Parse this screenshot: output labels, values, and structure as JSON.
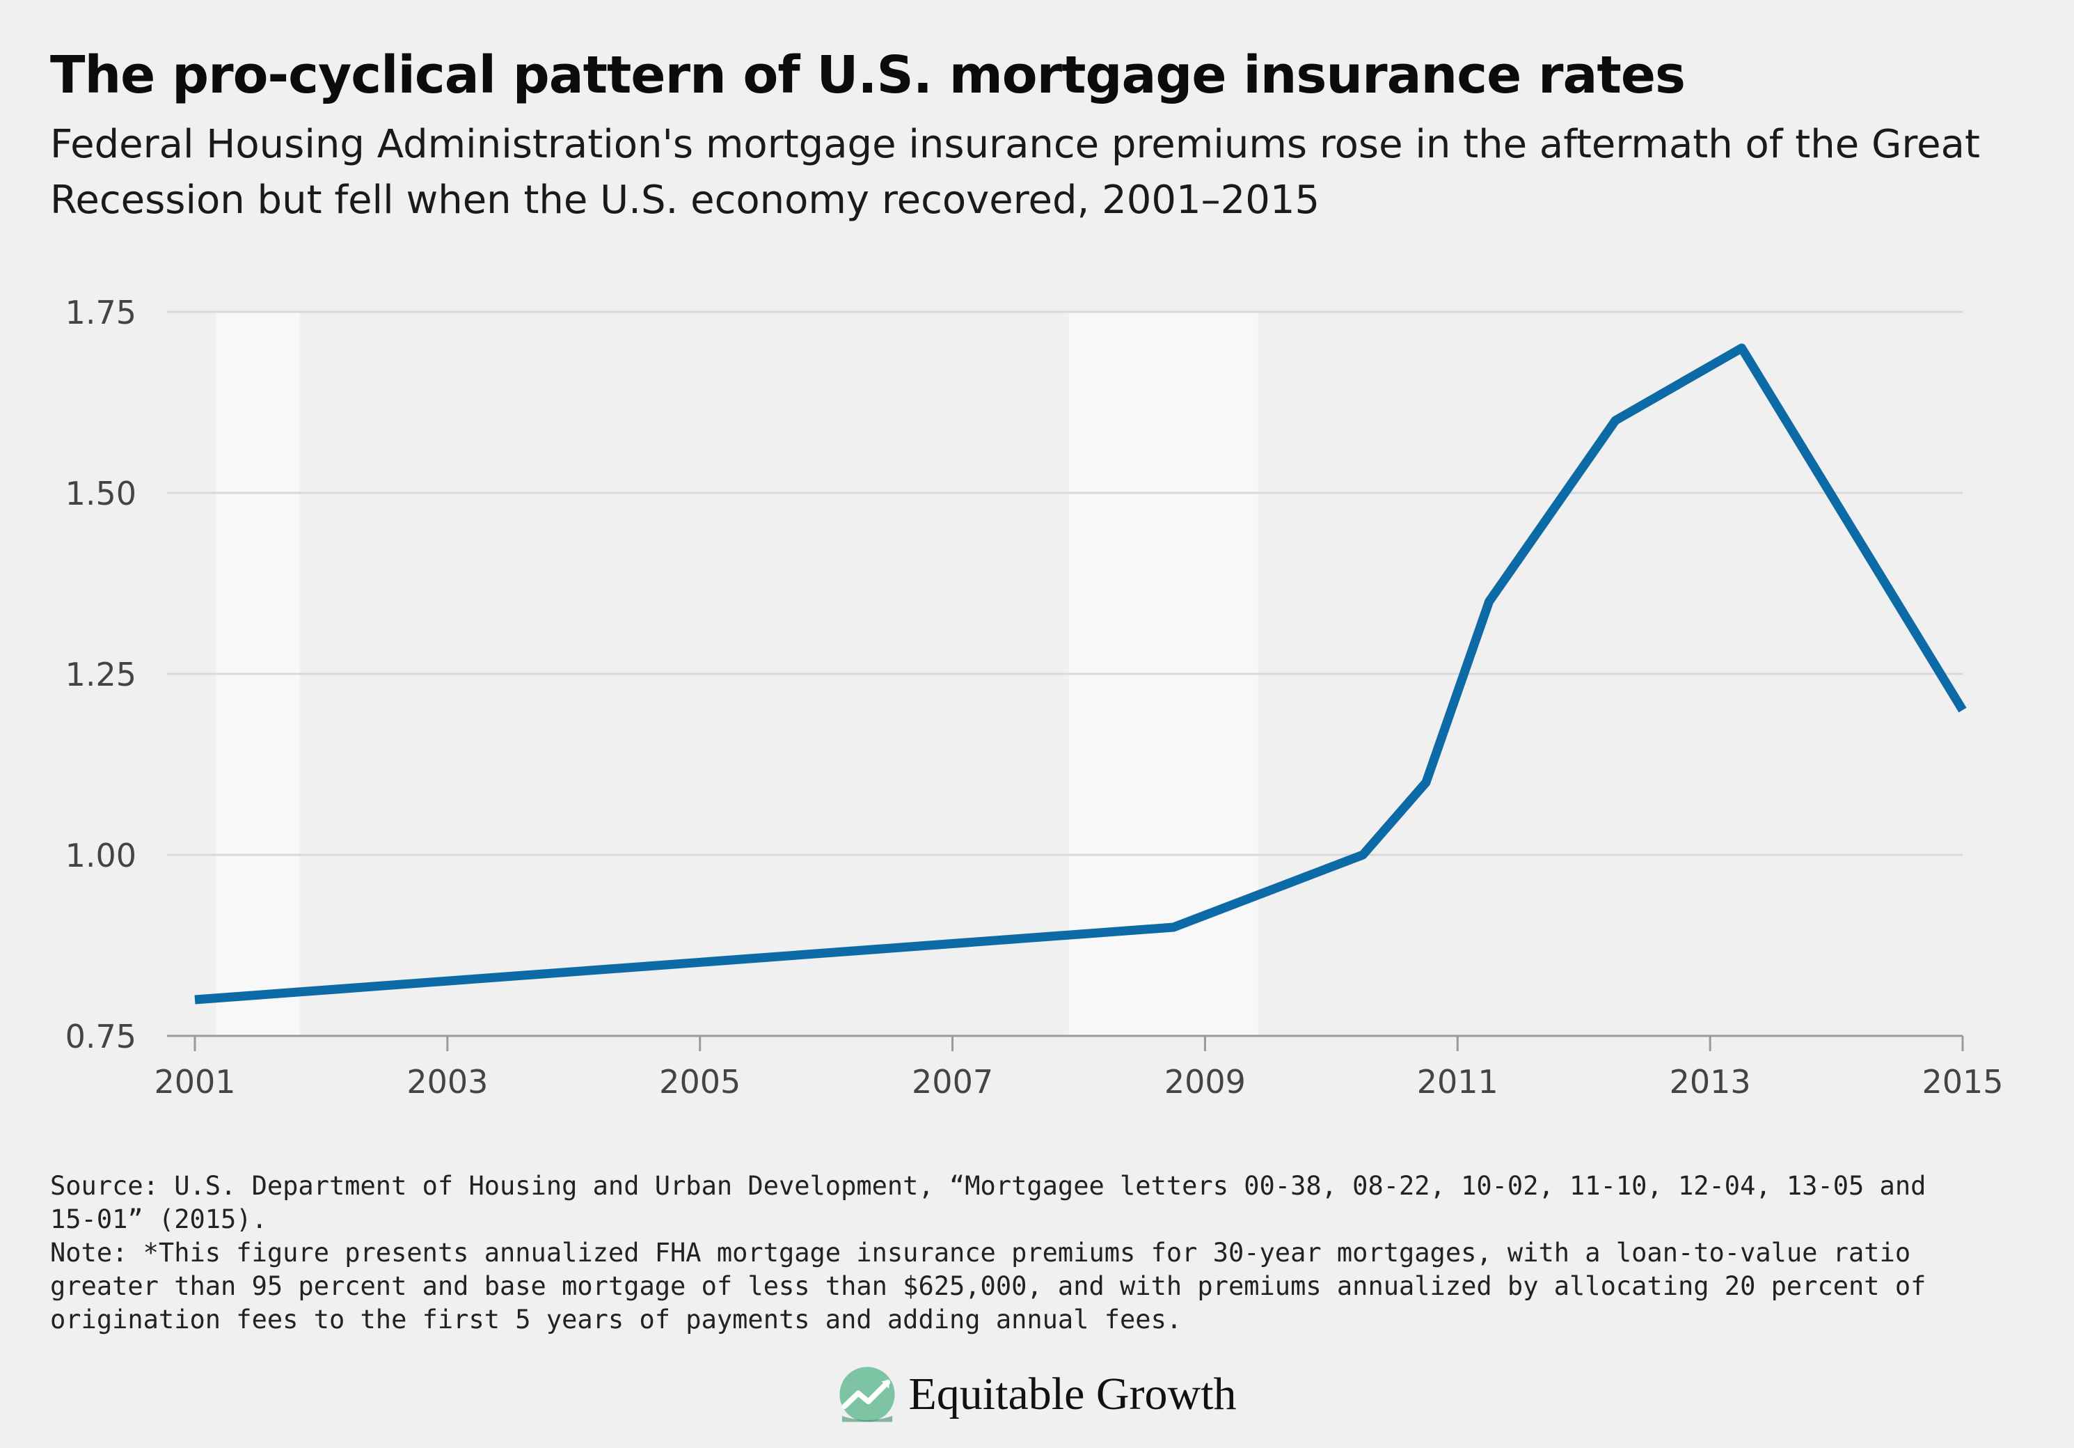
{
  "title": "The pro-cyclical pattern of U.S. mortgage insurance rates",
  "subtitle": "Federal Housing Administration's mortgage insurance premiums rose in the aftermath of the Great Recession but fell when the U.S. economy recovered, 2001–2015",
  "source": "Source: U.S. Department of Housing and Urban Development, “Mortgagee letters 00-38, 08-22, 10-02, 11-10, 12-04, 13-05 and 15-01” (2015).",
  "note": "Note: *This figure presents annualized FHA mortgage insurance premiums for 30-year mortgages, with a loan-to-value ratio greater than 95 percent and base mortgage of less than $625,000, and with premiums annualized by allocating 20 percent of origination fees to the first 5 years of payments and adding annual fees.",
  "brand": {
    "name": "Equitable Growth",
    "logo_icon": "equitable-growth-logo-icon"
  },
  "colors": {
    "line": "#0c6aa6",
    "recession_band": "#f8f8f8",
    "background": "#f0f0f0",
    "grid": "#d9d9d9"
  },
  "chart_data": {
    "type": "line",
    "xlim": [
      2001,
      2015
    ],
    "ylim": [
      0.75,
      1.75
    ],
    "x_ticks": [
      "2001",
      "2003",
      "2005",
      "2007",
      "2009",
      "2011",
      "2013",
      "2015"
    ],
    "y_ticks": [
      "0.75",
      "1.00",
      "1.25",
      "1.50",
      "1.75"
    ],
    "grid": "horizontal",
    "series": [
      {
        "x": [
          2001.0,
          2008.75,
          2010.25,
          2010.75,
          2011.25,
          2012.25,
          2013.25,
          2015.0
        ],
        "y": [
          0.8,
          0.9,
          1.0,
          1.1,
          1.35,
          1.6,
          1.7,
          1.2
        ]
      }
    ],
    "shaded_periods": [
      {
        "start": 2001.17,
        "end": 2001.83
      },
      {
        "start": 2007.92,
        "end": 2009.42
      }
    ]
  }
}
